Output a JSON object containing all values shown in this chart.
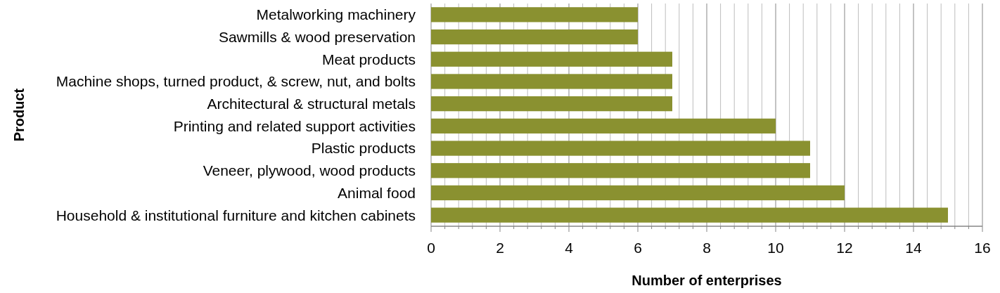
{
  "chart_data": {
    "type": "bar",
    "orientation": "horizontal",
    "categories": [
      "Metalworking machinery",
      "Sawmills & wood preservation",
      "Meat products",
      "Machine shops, turned product, & screw, nut, and bolts",
      "Architectural & structural metals",
      "Printing and related support activities",
      "Plastic products",
      "Veneer, plywood, wood products",
      "Animal food",
      "Household & institutional furniture and kitchen cabinets"
    ],
    "values": [
      6,
      6,
      7,
      7,
      7,
      10,
      11,
      11,
      12,
      15
    ],
    "color": "#8a9130",
    "xlim": [
      0,
      16
    ],
    "xticks": [
      0,
      {
        "value": 0.4,
        "label": null
      },
      {
        "value": 0.8,
        "label": null
      },
      {
        "value": 1.2,
        "label": null
      },
      {
        "value": 1.6,
        "label": null
      },
      2,
      {
        "value": 2.4,
        "label": null
      },
      {
        "value": 2.8,
        "label": null
      },
      {
        "value": 3.2,
        "label": null
      },
      {
        "value": 3.6,
        "label": null
      },
      4,
      {
        "value": 4.4,
        "label": null
      },
      {
        "value": 4.8,
        "label": null
      },
      {
        "value": 5.2,
        "label": null
      },
      {
        "value": 5.6,
        "label": null
      },
      6,
      {
        "value": 6.4,
        "label": null
      },
      {
        "value": 6.8,
        "label": null
      },
      {
        "value": 7.2,
        "label": null
      },
      {
        "value": 7.6,
        "label": null
      },
      8,
      {
        "value": 8.4,
        "label": null
      },
      {
        "value": 8.8,
        "label": null
      },
      {
        "value": 9.2,
        "label": null
      },
      {
        "value": 9.6,
        "label": null
      },
      10,
      {
        "value": 10.4,
        "label": null
      },
      {
        "value": 10.8,
        "label": null
      },
      {
        "value": 11.2,
        "label": null
      },
      {
        "value": 11.6,
        "label": null
      },
      12,
      {
        "value": 12.4,
        "label": null
      },
      {
        "value": 12.8,
        "label": null
      },
      {
        "value": 13.2,
        "label": null
      },
      {
        "value": 13.6,
        "label": null
      },
      14,
      {
        "value": 14.4,
        "label": null
      },
      {
        "value": 14.8,
        "label": null
      },
      {
        "value": 15.2,
        "label": null
      },
      {
        "value": 15.6,
        "label": null
      },
      16
    ],
    "grid": "x",
    "xlabel": "Number of enterprises",
    "ylabel": "Product"
  }
}
